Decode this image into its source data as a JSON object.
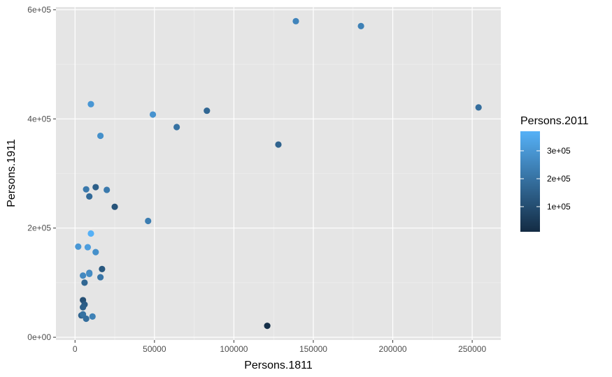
{
  "chart_data": {
    "type": "scatter",
    "xlabel": "Persons.1811",
    "ylabel": "Persons.1911",
    "xlim": [
      -12000,
      268000
    ],
    "ylim": [
      -5000,
      605000
    ],
    "x_ticks": [
      0,
      50000,
      100000,
      150000,
      200000,
      250000
    ],
    "x_tick_labels": [
      "0",
      "50000",
      "100000",
      "150000",
      "200000",
      "250000"
    ],
    "y_ticks": [
      0,
      200000,
      400000,
      600000
    ],
    "y_tick_labels": [
      "0e+00",
      "2e+05",
      "4e+05",
      "6e+05"
    ],
    "grid": true,
    "legend": {
      "title": "Persons.2011",
      "position": "right",
      "range": [
        10000,
        370000
      ],
      "ticks": [
        100000,
        200000,
        300000
      ],
      "tick_labels": [
        "1e+05",
        "2e+05",
        "3e+05"
      ],
      "color_low": "#132b43",
      "color_high": "#56b1f7"
    },
    "points": [
      {
        "x": 139000,
        "y": 579000,
        "color_value": 250000
      },
      {
        "x": 180000,
        "y": 570000,
        "color_value": 240000
      },
      {
        "x": 254000,
        "y": 421000,
        "color_value": 190000
      },
      {
        "x": 10000,
        "y": 427000,
        "color_value": 300000
      },
      {
        "x": 49000,
        "y": 408000,
        "color_value": 290000
      },
      {
        "x": 83000,
        "y": 415000,
        "color_value": 170000
      },
      {
        "x": 64000,
        "y": 385000,
        "color_value": 200000
      },
      {
        "x": 128000,
        "y": 353000,
        "color_value": 160000
      },
      {
        "x": 16000,
        "y": 369000,
        "color_value": 280000
      },
      {
        "x": 13000,
        "y": 275000,
        "color_value": 150000
      },
      {
        "x": 7000,
        "y": 271000,
        "color_value": 220000
      },
      {
        "x": 20000,
        "y": 270000,
        "color_value": 220000
      },
      {
        "x": 9000,
        "y": 258000,
        "color_value": 180000
      },
      {
        "x": 25000,
        "y": 239000,
        "color_value": 120000
      },
      {
        "x": 46000,
        "y": 213000,
        "color_value": 230000
      },
      {
        "x": 10000,
        "y": 190000,
        "color_value": 370000
      },
      {
        "x": 2000,
        "y": 166000,
        "color_value": 300000
      },
      {
        "x": 8000,
        "y": 165000,
        "color_value": 320000
      },
      {
        "x": 13000,
        "y": 156000,
        "color_value": 280000
      },
      {
        "x": 17000,
        "y": 125000,
        "color_value": 130000
      },
      {
        "x": 9000,
        "y": 118000,
        "color_value": 250000
      },
      {
        "x": 9000,
        "y": 116000,
        "color_value": 270000
      },
      {
        "x": 5000,
        "y": 113000,
        "color_value": 260000
      },
      {
        "x": 16000,
        "y": 110000,
        "color_value": 210000
      },
      {
        "x": 6000,
        "y": 100000,
        "color_value": 170000
      },
      {
        "x": 5000,
        "y": 68000,
        "color_value": 110000
      },
      {
        "x": 6000,
        "y": 60000,
        "color_value": 140000
      },
      {
        "x": 5000,
        "y": 55000,
        "color_value": 150000
      },
      {
        "x": 4000,
        "y": 40000,
        "color_value": 160000
      },
      {
        "x": 5000,
        "y": 42000,
        "color_value": 200000
      },
      {
        "x": 11000,
        "y": 38000,
        "color_value": 240000
      },
      {
        "x": 7000,
        "y": 34000,
        "color_value": 190000
      },
      {
        "x": 121000,
        "y": 21000,
        "color_value": 20000
      }
    ]
  }
}
